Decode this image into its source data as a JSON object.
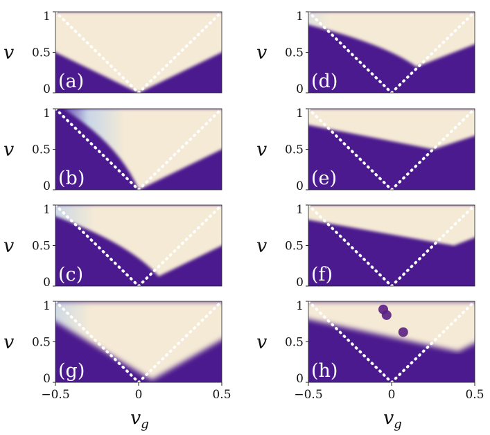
{
  "chart_data": {
    "type": "heatmap",
    "shared_axes": {
      "xlabel": "v",
      "xlabel_subscript": "g",
      "ylabel": "v",
      "xlim": [
        -0.5,
        0.5
      ],
      "ylim": [
        0,
        1
      ],
      "xticks": [
        "-0.5",
        "0",
        "0.5"
      ],
      "yticks": [
        "0",
        "0.5",
        "1"
      ]
    },
    "colors": {
      "low": "#4b1a8e",
      "mid": "#8f86d4",
      "light": "#cfe0ec",
      "high": "#f5ead5",
      "guide_lines": "#ffffff"
    },
    "guide_lines": "v = |v_g| (dotted)",
    "panels": [
      {
        "label": "(a)",
        "column": "left",
        "row": 0,
        "edge_left": -1.0,
        "edge_right": 1.0,
        "apex_v": 0.0
      },
      {
        "label": "(b)",
        "column": "left",
        "row": 1,
        "edge_left": -0.45,
        "edge_right": 1.0,
        "apex_v": 0.0
      },
      {
        "label": "(c)",
        "column": "left",
        "row": 2,
        "edge_left": -0.7,
        "edge_right": 1.0,
        "apex_v": 0.12,
        "apex_vg": 0.12
      },
      {
        "label": "(g)",
        "column": "left",
        "row": 3,
        "edge_left": -0.7,
        "edge_right": 0.9,
        "apex_v": 0.03,
        "apex_vg": 0.08,
        "blurred": true
      },
      {
        "label": "(d)",
        "column": "right",
        "row": 0,
        "edge_left": -0.85,
        "edge_right": 1.0,
        "apex_v": 0.32,
        "apex_vg": 0.15
      },
      {
        "label": "(e)",
        "column": "right",
        "row": 1,
        "edge_left": -1.0,
        "edge_right": 1.0,
        "apex_v": 0.5,
        "apex_vg": 0.25
      },
      {
        "label": "(f)",
        "column": "right",
        "row": 2,
        "edge_left": -1.0,
        "edge_right": 1.0,
        "apex_v": 0.5,
        "apex_vg": 0.375
      },
      {
        "label": "(h)",
        "column": "right",
        "row": 3,
        "edge_left": -1.0,
        "edge_right": 1.0,
        "apex_v": 0.38,
        "apex_vg": 0.4,
        "blurred": true,
        "blobs": [
          [
            -0.05,
            0.9
          ],
          [
            -0.03,
            0.83
          ],
          [
            0.07,
            0.62
          ]
        ]
      }
    ]
  }
}
